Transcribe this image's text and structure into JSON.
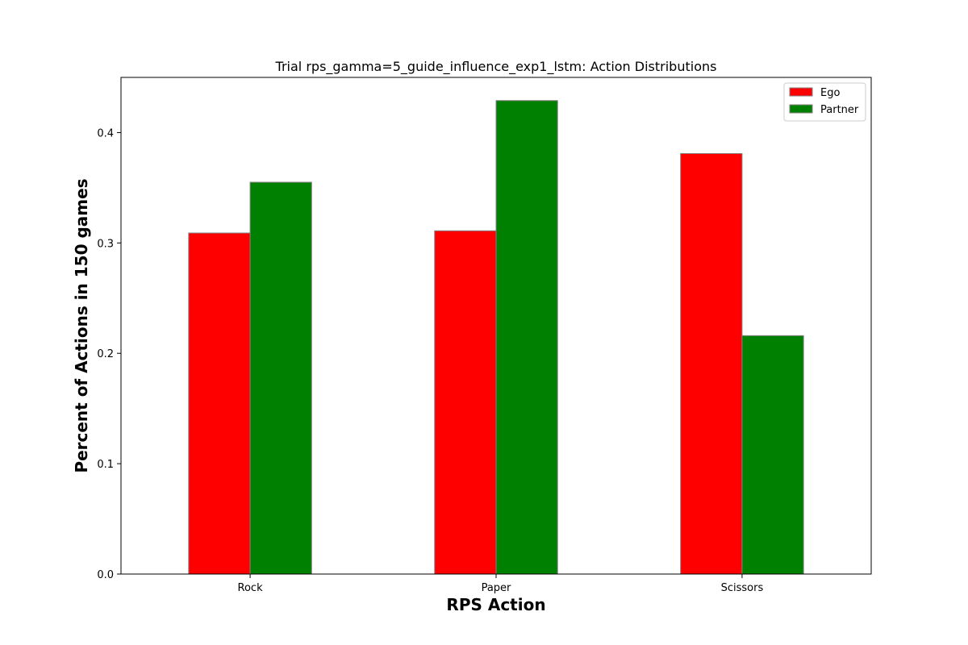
{
  "chart_data": {
    "type": "bar",
    "title": "Trial rps_gamma=5_guide_influence_exp1_lstm: Action Distributions",
    "xlabel": "RPS Action",
    "ylabel": "Percent of Actions in 150 games",
    "categories": [
      "Rock",
      "Paper",
      "Scissors"
    ],
    "series": [
      {
        "name": "Ego",
        "color": "#ff0000",
        "values": [
          0.309,
          0.311,
          0.381
        ]
      },
      {
        "name": "Partner",
        "color": "#008000",
        "values": [
          0.355,
          0.429,
          0.216
        ]
      }
    ],
    "ylim": [
      0,
      0.45
    ],
    "yticks": [
      "0.0",
      "0.1",
      "0.2",
      "0.3",
      "0.4"
    ],
    "grid": false,
    "legend_position": "top-right",
    "bar_edge_color": "#808080"
  }
}
